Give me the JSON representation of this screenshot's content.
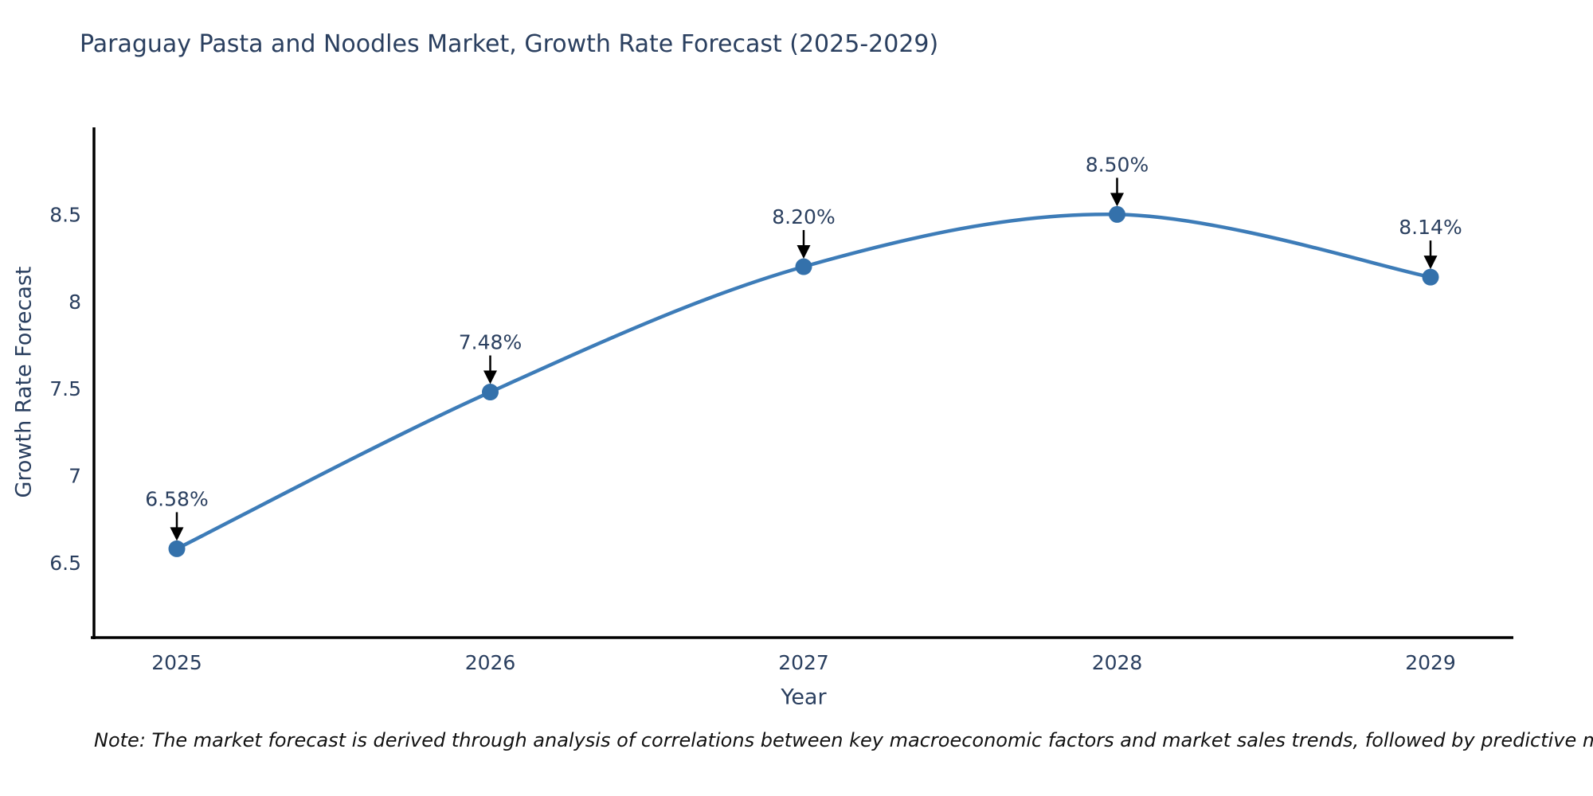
{
  "note": "Note: The market forecast is derived through analysis of correlations between key macroeconomic factors and market sales trends, followed by predictive modeling to project future sales",
  "chart_data": {
    "type": "line",
    "title": "Paraguay Pasta and Noodles Market, Growth Rate Forecast (2025-2029)",
    "xlabel": "Year",
    "ylabel": "Growth Rate Forecast",
    "categories": [
      "2025",
      "2026",
      "2027",
      "2028",
      "2029"
    ],
    "values": [
      6.58,
      7.48,
      8.2,
      8.5,
      8.14
    ],
    "point_labels": [
      "6.58%",
      "7.48%",
      "8.20%",
      "8.50%",
      "8.14%"
    ],
    "ytick_values": [
      6.5,
      7,
      7.5,
      8,
      8.5
    ],
    "ytick_labels": [
      "6.5",
      "7",
      "7.5",
      "8",
      "8.5"
    ],
    "ylim": [
      6.07,
      9.0
    ],
    "grid": false,
    "legend": "none",
    "line_shape": "spline",
    "annotation_arrows": true,
    "colors": {
      "line": "#3d7cb8",
      "marker": "#3471ab",
      "arrow": "#000000",
      "text": "#2a3f5f",
      "axis": "#000000",
      "background": "#ffffff"
    }
  }
}
